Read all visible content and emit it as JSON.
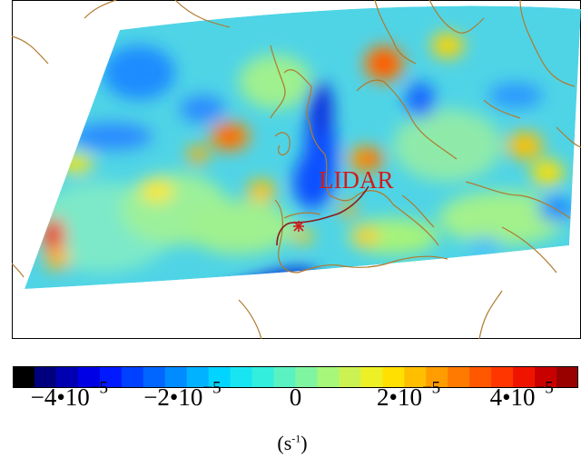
{
  "map": {
    "annotation_label": "LIDAR",
    "marker_symbol": "*",
    "colors": {
      "coastline": "#b07a2e",
      "lidar": "#d11b1b",
      "track": "#8b1a1a"
    }
  },
  "colorbar": {
    "unit_base": "(s",
    "unit_exp": "-1",
    "unit_close": ")",
    "ticks": [
      {
        "mantissa": "−4•10",
        "exponent": "−5",
        "value": -4e-05
      },
      {
        "mantissa": "−2•10",
        "exponent": "−5",
        "value": -2e-05
      },
      {
        "mantissa": "0",
        "exponent": "",
        "value": 0
      },
      {
        "mantissa": "2•10",
        "exponent": "−5",
        "value": 2e-05
      },
      {
        "mantissa": "4•10",
        "exponent": "−5",
        "value": 4e-05
      }
    ],
    "range": [
      -5e-05,
      5e-05
    ],
    "palette": [
      "#000000",
      "#00007f",
      "#0000b2",
      "#0000e5",
      "#0019ff",
      "#0040ff",
      "#0066ff",
      "#008cff",
      "#00b2ff",
      "#00d4ff",
      "#19e5f2",
      "#33eedd",
      "#5af2c0",
      "#80f59f",
      "#a6f77a",
      "#ccf252",
      "#eef026",
      "#ffe000",
      "#ffbf00",
      "#ff9c00",
      "#ff7a00",
      "#ff5800",
      "#ff3600",
      "#ef1400",
      "#c80000",
      "#990000"
    ]
  }
}
